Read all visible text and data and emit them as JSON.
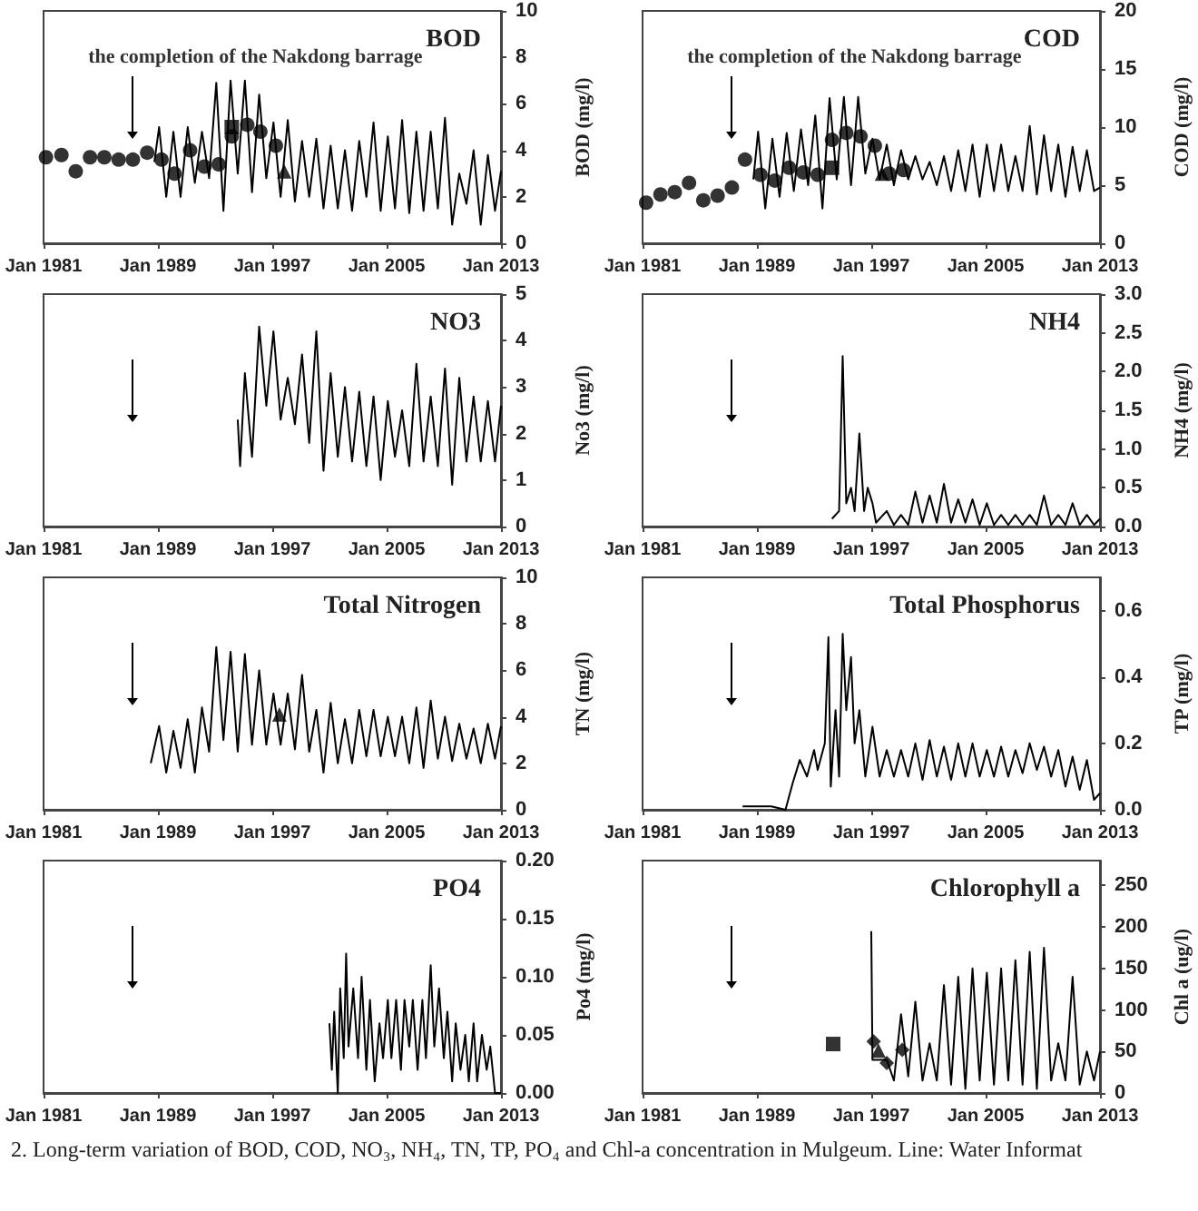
{
  "chart_data": [
    {
      "type": "line",
      "title": "BOD",
      "ylabel": "BOD (mg/l)",
      "xlim": [
        "1981-01",
        "2013-01"
      ],
      "xticks": [
        {
          "value": "1981-01",
          "label": "Jan 1981"
        },
        {
          "value": "1989-01",
          "label": "Jan 1989"
        },
        {
          "value": "1997-01",
          "label": "Jan 1997"
        },
        {
          "value": "2005-01",
          "label": "Jan 2005"
        },
        {
          "value": "2013-01",
          "label": "Jan 2013"
        }
      ],
      "ylim": [
        0,
        10
      ],
      "yticks": [
        0,
        2,
        4,
        6,
        8,
        10
      ],
      "ref_lines": [
        {
          "axis": "x",
          "value": "1987-03",
          "label": "the completion of the Nakdong barrage",
          "color": "#000000"
        }
      ],
      "series": [
        {
          "marker": "none",
          "color": "#000000",
          "x": [
            "1988-10",
            "1989-02",
            "1989-08",
            "1990-02",
            "1990-08",
            "1991-02",
            "1991-08",
            "1992-02",
            "1992-08",
            "1993-02",
            "1993-08",
            "1994-02",
            "1994-08",
            "1995-02",
            "1995-08",
            "1996-02",
            "1996-08",
            "1997-02",
            "1997-08",
            "1998-02",
            "1998-08",
            "1999-02",
            "1999-08",
            "2000-02",
            "2000-08",
            "2001-02",
            "2001-08",
            "2002-02",
            "2002-08",
            "2003-02",
            "2003-08",
            "2004-02",
            "2004-08",
            "2005-02",
            "2005-08",
            "2006-02",
            "2006-08",
            "2007-02",
            "2007-08",
            "2008-02",
            "2008-08",
            "2009-02",
            "2009-08",
            "2010-02",
            "2010-08",
            "2011-02",
            "2011-08",
            "2012-02",
            "2012-08",
            "2013-01"
          ],
          "values": [
            3.5,
            5.0,
            2.0,
            4.8,
            2.0,
            5.0,
            2.6,
            4.8,
            2.8,
            6.9,
            1.4,
            7.0,
            3.0,
            7.0,
            2.2,
            6.4,
            2.8,
            5.2,
            2.0,
            5.3,
            1.8,
            4.4,
            2.0,
            4.5,
            1.5,
            4.2,
            1.5,
            4.0,
            1.4,
            4.4,
            2.0,
            5.2,
            1.4,
            4.6,
            1.5,
            5.3,
            1.3,
            4.8,
            1.4,
            4.8,
            1.5,
            5.4,
            0.8,
            3.0,
            1.7,
            4.0,
            0.8,
            3.8,
            1.4,
            3.1
          ]
        },
        {
          "type": "scatter",
          "marker": "circle",
          "color": "#000000",
          "x": [
            "1981-03",
            "1982-04",
            "1983-04",
            "1984-04",
            "1985-04",
            "1986-04",
            "1987-04",
            "1988-04",
            "1989-04",
            "1990-03",
            "1991-04",
            "1992-04",
            "1993-04",
            "1994-03",
            "1995-04",
            "1996-03",
            "1997-04"
          ],
          "values": [
            3.7,
            3.8,
            3.1,
            3.7,
            3.7,
            3.6,
            3.6,
            3.9,
            3.6,
            3.0,
            4.0,
            3.3,
            3.4,
            4.6,
            5.1,
            4.8,
            4.2
          ]
        },
        {
          "type": "scatter",
          "marker": "square",
          "color": "#000000",
          "x": [
            "1994-03"
          ],
          "values": [
            5.0
          ]
        },
        {
          "type": "scatter",
          "marker": "triangle",
          "color": "#000000",
          "x": [
            "1997-11"
          ],
          "values": [
            3.1
          ]
        }
      ]
    },
    {
      "type": "line",
      "title": "COD",
      "ylabel": "COD (mg/l)",
      "xlim": [
        "1981-01",
        "2013-01"
      ],
      "xticks": [
        {
          "value": "1981-01",
          "label": "Jan 1981"
        },
        {
          "value": "1989-01",
          "label": "Jan 1989"
        },
        {
          "value": "1997-01",
          "label": "Jan 1997"
        },
        {
          "value": "2005-01",
          "label": "Jan 2005"
        },
        {
          "value": "2013-01",
          "label": "Jan 2013"
        }
      ],
      "ylim": [
        0,
        20
      ],
      "yticks": [
        0,
        5,
        10,
        15,
        20
      ],
      "ref_lines": [
        {
          "axis": "x",
          "value": "1987-03",
          "label": "the completion of the Nakdong barrage",
          "color": "#000000"
        }
      ],
      "series": [
        {
          "marker": "none",
          "color": "#000000",
          "x": [
            "1988-10",
            "1989-02",
            "1989-08",
            "1990-02",
            "1990-08",
            "1991-02",
            "1991-08",
            "1992-02",
            "1992-08",
            "1993-02",
            "1993-08",
            "1994-02",
            "1994-08",
            "1995-02",
            "1995-08",
            "1996-02",
            "1996-08",
            "1997-02",
            "1997-08",
            "1998-02",
            "1998-08",
            "1999-02",
            "1999-08",
            "2000-02",
            "2000-08",
            "2001-02",
            "2001-08",
            "2002-02",
            "2002-08",
            "2003-02",
            "2003-08",
            "2004-02",
            "2004-08",
            "2005-02",
            "2005-08",
            "2006-02",
            "2006-08",
            "2007-02",
            "2007-08",
            "2008-02",
            "2008-08",
            "2009-02",
            "2009-08",
            "2010-02",
            "2010-08",
            "2011-02",
            "2011-08",
            "2012-02",
            "2012-08",
            "2013-01"
          ],
          "values": [
            5.5,
            9.6,
            3.0,
            9.0,
            4.0,
            9.5,
            4.5,
            9.8,
            5.0,
            11.0,
            3.0,
            12.5,
            5.5,
            12.6,
            5.0,
            12.6,
            6.0,
            9.0,
            5.5,
            8.5,
            5.0,
            8.0,
            5.5,
            7.5,
            5.5,
            7.0,
            5.0,
            7.5,
            4.5,
            8.0,
            4.5,
            8.5,
            4.0,
            8.5,
            4.5,
            8.5,
            4.5,
            7.5,
            4.5,
            10.1,
            4.2,
            9.3,
            4.5,
            8.5,
            4.0,
            8.3,
            4.5,
            8.0,
            4.5,
            4.8
          ]
        },
        {
          "type": "scatter",
          "marker": "circle",
          "color": "#000000",
          "x": [
            "1981-04",
            "1982-04",
            "1983-04",
            "1984-04",
            "1985-04",
            "1986-04",
            "1987-04",
            "1988-03",
            "1989-04",
            "1990-04",
            "1991-04",
            "1992-04",
            "1993-04",
            "1994-04",
            "1995-04",
            "1996-04",
            "1997-04",
            "1998-04",
            "1999-04"
          ],
          "values": [
            3.5,
            4.2,
            4.4,
            5.2,
            3.7,
            4.1,
            4.8,
            7.2,
            5.9,
            5.4,
            6.5,
            6.1,
            5.9,
            8.9,
            9.5,
            9.2,
            8.4,
            6.0,
            6.3
          ]
        },
        {
          "type": "scatter",
          "marker": "square",
          "color": "#000000",
          "x": [
            "1994-04"
          ],
          "values": [
            6.5
          ]
        },
        {
          "type": "scatter",
          "marker": "triangle",
          "color": "#000000",
          "x": [
            "1997-10"
          ],
          "values": [
            6.0
          ]
        }
      ]
    },
    {
      "type": "line",
      "title": "NO3",
      "ylabel": "No3 (mg/l)",
      "xlim": [
        "1981-01",
        "2013-01"
      ],
      "xticks": [
        {
          "value": "1981-01",
          "label": "Jan 1981"
        },
        {
          "value": "1989-01",
          "label": "Jan 1989"
        },
        {
          "value": "1997-01",
          "label": "Jan 1997"
        },
        {
          "value": "2005-01",
          "label": "Jan 2005"
        },
        {
          "value": "2013-01",
          "label": "Jan 2013"
        }
      ],
      "ylim": [
        0,
        5
      ],
      "yticks": [
        0,
        1,
        2,
        3,
        4,
        5
      ],
      "ref_lines": [
        {
          "axis": "x",
          "value": "1987-03",
          "color": "#000000"
        }
      ],
      "series": [
        {
          "marker": "none",
          "color": "#000000",
          "x": [
            "1994-08",
            "1994-10",
            "1995-02",
            "1995-08",
            "1996-02",
            "1996-08",
            "1997-02",
            "1997-08",
            "1998-02",
            "1998-08",
            "1999-02",
            "1999-08",
            "2000-02",
            "2000-08",
            "2001-02",
            "2001-08",
            "2002-02",
            "2002-08",
            "2003-02",
            "2003-08",
            "2004-02",
            "2004-08",
            "2005-02",
            "2005-08",
            "2006-02",
            "2006-08",
            "2007-02",
            "2007-08",
            "2008-02",
            "2008-08",
            "2009-02",
            "2009-08",
            "2010-02",
            "2010-08",
            "2011-02",
            "2011-08",
            "2012-02",
            "2012-08",
            "2013-01"
          ],
          "values": [
            2.3,
            1.3,
            3.3,
            1.5,
            4.3,
            2.6,
            4.2,
            2.3,
            3.2,
            2.2,
            3.7,
            1.8,
            4.2,
            1.2,
            3.3,
            1.5,
            3.0,
            1.4,
            2.9,
            1.3,
            2.8,
            1.0,
            2.7,
            1.5,
            2.5,
            1.3,
            3.5,
            1.4,
            2.8,
            1.3,
            3.4,
            0.9,
            3.2,
            1.4,
            2.8,
            1.4,
            2.7,
            1.4,
            2.6
          ]
        }
      ]
    },
    {
      "type": "line",
      "title": "NH4",
      "ylabel": "NH4 (mg/l)",
      "xlim": [
        "1981-01",
        "2013-01"
      ],
      "xticks": [
        {
          "value": "1981-01",
          "label": "Jan 1981"
        },
        {
          "value": "1989-01",
          "label": "Jan 1989"
        },
        {
          "value": "1997-01",
          "label": "Jan 1997"
        },
        {
          "value": "2005-01",
          "label": "Jan 2005"
        },
        {
          "value": "2013-01",
          "label": "Jan 2013"
        }
      ],
      "ylim": [
        0,
        3
      ],
      "yticks": [
        {
          "value": 0,
          "label": "0.0"
        },
        0.5,
        {
          "value": 1,
          "label": "1.0"
        },
        1.5,
        {
          "value": 2,
          "label": "2.0"
        },
        2.5,
        {
          "value": 3,
          "label": "3.0"
        }
      ],
      "ref_lines": [
        {
          "axis": "x",
          "value": "1987-03",
          "color": "#000000"
        }
      ],
      "series": [
        {
          "marker": "none",
          "color": "#000000",
          "x": [
            "1994-04",
            "1994-10",
            "1995-01",
            "1995-04",
            "1995-08",
            "1995-11",
            "1996-03",
            "1996-07",
            "1996-10",
            "1997-02",
            "1997-05",
            "1998-02",
            "1998-08",
            "1999-02",
            "1999-08",
            "2000-02",
            "2000-08",
            "2001-02",
            "2001-08",
            "2002-02",
            "2002-08",
            "2003-02",
            "2003-08",
            "2004-02",
            "2004-08",
            "2005-02",
            "2005-08",
            "2006-02",
            "2006-08",
            "2007-02",
            "2007-08",
            "2008-02",
            "2008-08",
            "2009-02",
            "2009-08",
            "2010-02",
            "2010-08",
            "2011-02",
            "2011-08",
            "2012-02",
            "2012-08",
            "2013-01"
          ],
          "values": [
            0.1,
            0.2,
            2.2,
            0.3,
            0.5,
            0.2,
            1.2,
            0.2,
            0.5,
            0.3,
            0.05,
            0.2,
            0.02,
            0.15,
            0.02,
            0.45,
            0.05,
            0.4,
            0.05,
            0.55,
            0.05,
            0.35,
            0.05,
            0.35,
            0.02,
            0.3,
            0.02,
            0.15,
            0.02,
            0.15,
            0.02,
            0.15,
            0.02,
            0.4,
            0.02,
            0.15,
            0.02,
            0.3,
            0.02,
            0.15,
            0.02,
            0.1
          ]
        }
      ]
    },
    {
      "type": "line",
      "title": "Total Nitrogen",
      "ylabel": "TN (mg/l)",
      "xlim": [
        "1981-01",
        "2013-01"
      ],
      "xticks": [
        {
          "value": "1981-01",
          "label": "Jan 1981"
        },
        {
          "value": "1989-01",
          "label": "Jan 1989"
        },
        {
          "value": "1997-01",
          "label": "Jan 1997"
        },
        {
          "value": "2005-01",
          "label": "Jan 2005"
        },
        {
          "value": "2013-01",
          "label": "Jan 2013"
        }
      ],
      "ylim": [
        0,
        10
      ],
      "yticks": [
        0,
        2,
        4,
        6,
        8,
        10
      ],
      "ref_lines": [
        {
          "axis": "x",
          "value": "1987-03",
          "color": "#000000"
        }
      ],
      "series": [
        {
          "marker": "none",
          "color": "#000000",
          "x": [
            "1988-07",
            "1989-02",
            "1989-08",
            "1990-02",
            "1990-08",
            "1991-02",
            "1991-08",
            "1992-02",
            "1992-08",
            "1993-02",
            "1993-08",
            "1994-02",
            "1994-08",
            "1995-02",
            "1995-08",
            "1996-02",
            "1996-08",
            "1997-02",
            "1997-08",
            "1998-02",
            "1998-08",
            "1999-02",
            "1999-08",
            "2000-02",
            "2000-08",
            "2001-02",
            "2001-08",
            "2002-02",
            "2002-08",
            "2003-02",
            "2003-08",
            "2004-02",
            "2004-08",
            "2005-02",
            "2005-08",
            "2006-02",
            "2006-08",
            "2007-02",
            "2007-08",
            "2008-02",
            "2008-08",
            "2009-02",
            "2009-08",
            "2010-02",
            "2010-08",
            "2011-02",
            "2011-08",
            "2012-02",
            "2012-08",
            "2013-01"
          ],
          "values": [
            2.0,
            3.6,
            1.6,
            3.4,
            1.8,
            3.9,
            1.6,
            4.4,
            2.5,
            7.0,
            3.0,
            6.8,
            2.5,
            6.7,
            2.8,
            6.0,
            2.8,
            5.0,
            2.8,
            5.0,
            2.6,
            5.8,
            2.5,
            4.3,
            1.6,
            4.6,
            2.0,
            3.9,
            2.0,
            4.3,
            2.3,
            4.3,
            2.3,
            4.0,
            2.3,
            4.0,
            2.0,
            4.4,
            1.8,
            4.7,
            2.2,
            4.0,
            2.1,
            3.7,
            2.2,
            3.5,
            2.0,
            3.7,
            2.2,
            3.6
          ]
        },
        {
          "type": "scatter",
          "marker": "triangle",
          "color": "#000000",
          "x": [
            "1997-07"
          ],
          "values": [
            4.1
          ]
        }
      ]
    },
    {
      "type": "line",
      "title": "Total Phosphorus",
      "ylabel": "TP (mg/l)",
      "xlim": [
        "1981-01",
        "2013-01"
      ],
      "xticks": [
        {
          "value": "1981-01",
          "label": "Jan 1981"
        },
        {
          "value": "1989-01",
          "label": "Jan 1989"
        },
        {
          "value": "1997-01",
          "label": "Jan 1997"
        },
        {
          "value": "2005-01",
          "label": "Jan 2005"
        },
        {
          "value": "2013-01",
          "label": "Jan 2013"
        }
      ],
      "ylim": [
        0,
        0.7
      ],
      "yticks": [
        {
          "value": 0,
          "label": "0.0"
        },
        0.2,
        0.4,
        0.6
      ],
      "ref_lines": [
        {
          "axis": "x",
          "value": "1987-03",
          "color": "#000000"
        }
      ],
      "series": [
        {
          "marker": "none",
          "color": "#000000",
          "x": [
            "1988-01",
            "1989-01",
            "1990-01",
            "1991-01",
            "1991-07",
            "1992-01",
            "1992-07",
            "1993-01",
            "1993-04",
            "1993-10",
            "1994-01",
            "1994-03",
            "1994-07",
            "1994-10",
            "1995-01",
            "1995-04",
            "1995-08",
            "1995-11",
            "1996-03",
            "1996-08",
            "1997-02",
            "1997-08",
            "1998-02",
            "1998-08",
            "1999-02",
            "1999-08",
            "2000-02",
            "2000-08",
            "2001-02",
            "2001-08",
            "2002-02",
            "2002-08",
            "2003-02",
            "2003-08",
            "2004-02",
            "2004-08",
            "2005-02",
            "2005-08",
            "2006-02",
            "2006-08",
            "2007-02",
            "2007-08",
            "2008-02",
            "2008-08",
            "2009-02",
            "2009-08",
            "2010-02",
            "2010-08",
            "2011-02",
            "2011-08",
            "2012-02",
            "2012-08",
            "2013-01"
          ],
          "values": [
            0.01,
            0.01,
            0.01,
            0.0,
            0.08,
            0.15,
            0.1,
            0.18,
            0.12,
            0.2,
            0.52,
            0.07,
            0.3,
            0.1,
            0.53,
            0.3,
            0.46,
            0.2,
            0.3,
            0.1,
            0.25,
            0.1,
            0.18,
            0.1,
            0.18,
            0.1,
            0.2,
            0.09,
            0.21,
            0.1,
            0.19,
            0.09,
            0.2,
            0.1,
            0.2,
            0.1,
            0.18,
            0.1,
            0.19,
            0.1,
            0.18,
            0.11,
            0.2,
            0.12,
            0.19,
            0.1,
            0.18,
            0.07,
            0.16,
            0.06,
            0.15,
            0.03,
            0.05
          ]
        }
      ]
    },
    {
      "type": "line",
      "title": "PO4",
      "ylabel": "Po4 (mg/l)",
      "xlim": [
        "1981-01",
        "2013-01"
      ],
      "xticks": [
        {
          "value": "1981-01",
          "label": "Jan 1981"
        },
        {
          "value": "1989-01",
          "label": "Jan 1989"
        },
        {
          "value": "1997-01",
          "label": "Jan 1997"
        },
        {
          "value": "2005-01",
          "label": "Jan 2005"
        },
        {
          "value": "2013-01",
          "label": "Jan 2013"
        }
      ],
      "ylim": [
        0,
        0.2
      ],
      "yticks": [
        {
          "value": 0,
          "label": "0.00"
        },
        0.05,
        {
          "value": 0.1,
          "label": "0.10"
        },
        0.15,
        {
          "value": 0.2,
          "label": "0.20"
        }
      ],
      "ref_lines": [
        {
          "axis": "x",
          "value": "1987-03",
          "color": "#000000"
        }
      ],
      "series": [
        {
          "marker": "none",
          "color": "#000000",
          "x": [
            "2001-01",
            "2001-03",
            "2001-05",
            "2001-08",
            "2001-10",
            "2002-01",
            "2002-03",
            "2002-05",
            "2002-09",
            "2003-01",
            "2003-04",
            "2003-08",
            "2003-11",
            "2004-03",
            "2004-07",
            "2004-10",
            "2005-02",
            "2005-05",
            "2005-09",
            "2006-01",
            "2006-04",
            "2006-08",
            "2006-11",
            "2007-03",
            "2007-07",
            "2007-10",
            "2008-02",
            "2008-05",
            "2008-09",
            "2009-01",
            "2009-04",
            "2009-08",
            "2009-11",
            "2010-03",
            "2010-07",
            "2010-10",
            "2011-02",
            "2011-05",
            "2011-09",
            "2012-01",
            "2012-04",
            "2012-08",
            "2013-01"
          ],
          "values": [
            0.06,
            0.02,
            0.07,
            0.0,
            0.09,
            0.03,
            0.12,
            0.04,
            0.09,
            0.03,
            0.1,
            0.02,
            0.08,
            0.01,
            0.06,
            0.03,
            0.08,
            0.03,
            0.08,
            0.02,
            0.08,
            0.04,
            0.08,
            0.02,
            0.08,
            0.03,
            0.11,
            0.04,
            0.09,
            0.03,
            0.07,
            0.01,
            0.06,
            0.02,
            0.05,
            0.01,
            0.06,
            0.01,
            0.05,
            0.02,
            0.04,
            0.0,
            0.0
          ]
        }
      ]
    },
    {
      "type": "line",
      "title": "Chlorophyll a",
      "ylabel": "Chl a (ug/l)",
      "xlim": [
        "1981-01",
        "2013-01"
      ],
      "xticks": [
        {
          "value": "1981-01",
          "label": "Jan 1981"
        },
        {
          "value": "1989-01",
          "label": "Jan 1989"
        },
        {
          "value": "1997-01",
          "label": "Jan 1997"
        },
        {
          "value": "2005-01",
          "label": "Jan 2005"
        },
        {
          "value": "2013-01",
          "label": "Jan 2013"
        }
      ],
      "ylim": [
        0,
        280
      ],
      "yticks": [
        0,
        50,
        100,
        150,
        200,
        250
      ],
      "ref_lines": [
        {
          "axis": "x",
          "value": "1987-03",
          "color": "#000000"
        }
      ],
      "annotations": [
        "2. Long-term variation of BOD, COD, NO₃, NH₄, TN, TP, PO₄ and Chl-a concentration in Mulgeum. Line: Water Informat"
      ],
      "series": [
        {
          "marker": "none",
          "color": "#000000",
          "x": [
            "1997-01",
            "1997-02",
            "1998-02",
            "1998-08",
            "1999-02",
            "1999-08",
            "2000-02",
            "2000-08",
            "2001-02",
            "2001-08",
            "2002-02",
            "2002-08",
            "2003-02",
            "2003-08",
            "2004-02",
            "2004-08",
            "2005-02",
            "2005-08",
            "2006-02",
            "2006-08",
            "2007-02",
            "2007-08",
            "2008-02",
            "2008-08",
            "2009-02",
            "2009-08",
            "2010-02",
            "2010-08",
            "2011-02",
            "2011-08",
            "2012-02",
            "2012-08",
            "2013-01"
          ],
          "values": [
            195,
            40,
            40,
            15,
            95,
            20,
            110,
            15,
            60,
            15,
            130,
            10,
            140,
            5,
            150,
            15,
            145,
            10,
            150,
            15,
            160,
            10,
            170,
            5,
            175,
            15,
            60,
            15,
            140,
            10,
            50,
            15,
            50
          ]
        },
        {
          "type": "scatter",
          "marker": "square",
          "color": "#000000",
          "x": [
            "1994-05"
          ],
          "values": [
            59
          ]
        },
        {
          "type": "scatter",
          "marker": "diamond",
          "color": "#000000",
          "x": [
            "1997-03",
            "1998-02",
            "1999-03"
          ],
          "values": [
            62,
            36,
            52
          ]
        },
        {
          "type": "scatter",
          "marker": "triangle",
          "color": "#000000",
          "x": [
            "1997-07"
          ],
          "values": [
            51
          ]
        }
      ]
    }
  ]
}
